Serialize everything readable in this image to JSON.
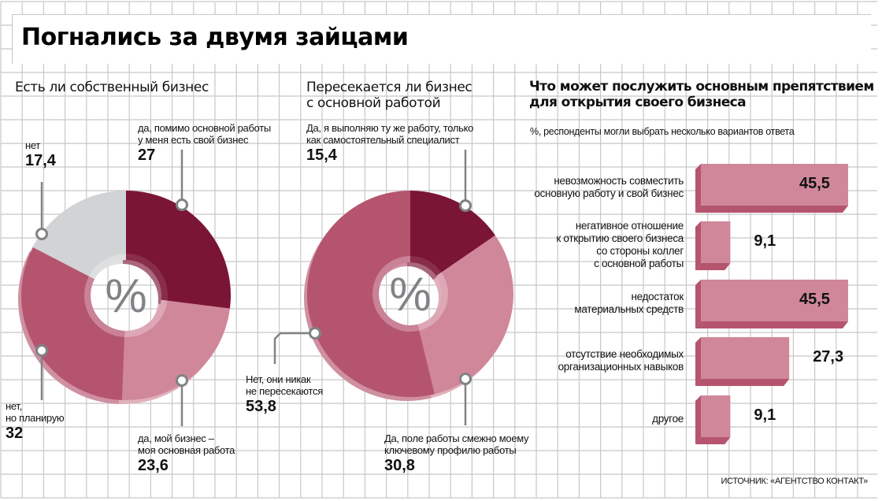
{
  "title": "Погнались за двумя зайцами",
  "colors": {
    "dark": "#7b1535",
    "rose": "#b5546e",
    "light": "#d0879a",
    "grey": "#d1d3d4",
    "grid": "#c8c8c8",
    "connector": "#808285",
    "percent_sign": "#808285"
  },
  "center_symbol": "%",
  "source": "ИСТОЧНИК: «АГЕНТСТВО КОНТАКТ»",
  "chart_data": [
    {
      "type": "pie",
      "variant": "donut",
      "title": "Есть ли собственный бизнес",
      "unit": "%",
      "slices": [
        {
          "label": "да, помимо основной работы у меня есть свой бизнес",
          "label_lines": [
            "да, помимо основной работы",
            "у меня есть свой бизнес"
          ],
          "value": 27,
          "display": "27",
          "color_key": "dark"
        },
        {
          "label": "да, мой бизнес – моя основная работа",
          "label_lines": [
            "да, мой бизнес –",
            "моя основная работа"
          ],
          "value": 23.6,
          "display": "23,6",
          "color_key": "light"
        },
        {
          "label": "нет, но планирую",
          "label_lines": [
            "нет,",
            "но планирую"
          ],
          "value": 32,
          "display": "32",
          "color_key": "rose"
        },
        {
          "label": "нет",
          "label_lines": [
            "нет"
          ],
          "value": 17.4,
          "display": "17,4",
          "color_key": "grey"
        }
      ]
    },
    {
      "type": "pie",
      "variant": "donut",
      "title": "Пересекается ли бизнес с основной работой",
      "title_lines": [
        "Пересекается ли бизнес",
        "с основной работой"
      ],
      "unit": "%",
      "slices": [
        {
          "label": "Да, я выполняю ту же работу, только как самостоятельный специалист",
          "label_lines": [
            "Да, я выполняю ту же работу, только",
            "как самостоятельный специалист"
          ],
          "value": 15.4,
          "display": "15,4",
          "color_key": "dark"
        },
        {
          "label": "Да, поле работы смежно моему ключевому профилю работы",
          "label_lines": [
            "Да, поле работы смежно моему",
            "ключевому профилю работы"
          ],
          "value": 30.8,
          "display": "30,8",
          "color_key": "light"
        },
        {
          "label": "Нет, они никак не пересекаются",
          "label_lines": [
            "Нет, они никак",
            "не пересекаются"
          ],
          "value": 53.8,
          "display": "53,8",
          "color_key": "rose"
        }
      ]
    },
    {
      "type": "bar",
      "orientation": "horizontal",
      "title": "Что может послужить основным препятствием для открытия своего бизнеса",
      "title_lines": [
        "Что может послужить основным препятствием",
        "для открытия своего бизнеса"
      ],
      "subtitle": "%, респонденты могли выбрать несколько вариантов ответа",
      "xlim": [
        0,
        45.5
      ],
      "categories": [
        {
          "label_lines": [
            "невозможность совместить",
            "основную работу и свой бизнес"
          ],
          "value": 45.5,
          "display": "45,5"
        },
        {
          "label_lines": [
            "негативное отношение",
            "к открытию своего бизнеса",
            "со стороны коллег",
            "с основной работы"
          ],
          "value": 9.1,
          "display": "9,1"
        },
        {
          "label_lines": [
            "недостаток",
            "материальных средств"
          ],
          "value": 45.5,
          "display": "45,5"
        },
        {
          "label_lines": [
            "отсутствие необходимых",
            "организационных навыков"
          ],
          "value": 27.3,
          "display": "27,3"
        },
        {
          "label_lines": [
            "другое"
          ],
          "value": 9.1,
          "display": "9,1"
        }
      ]
    }
  ]
}
